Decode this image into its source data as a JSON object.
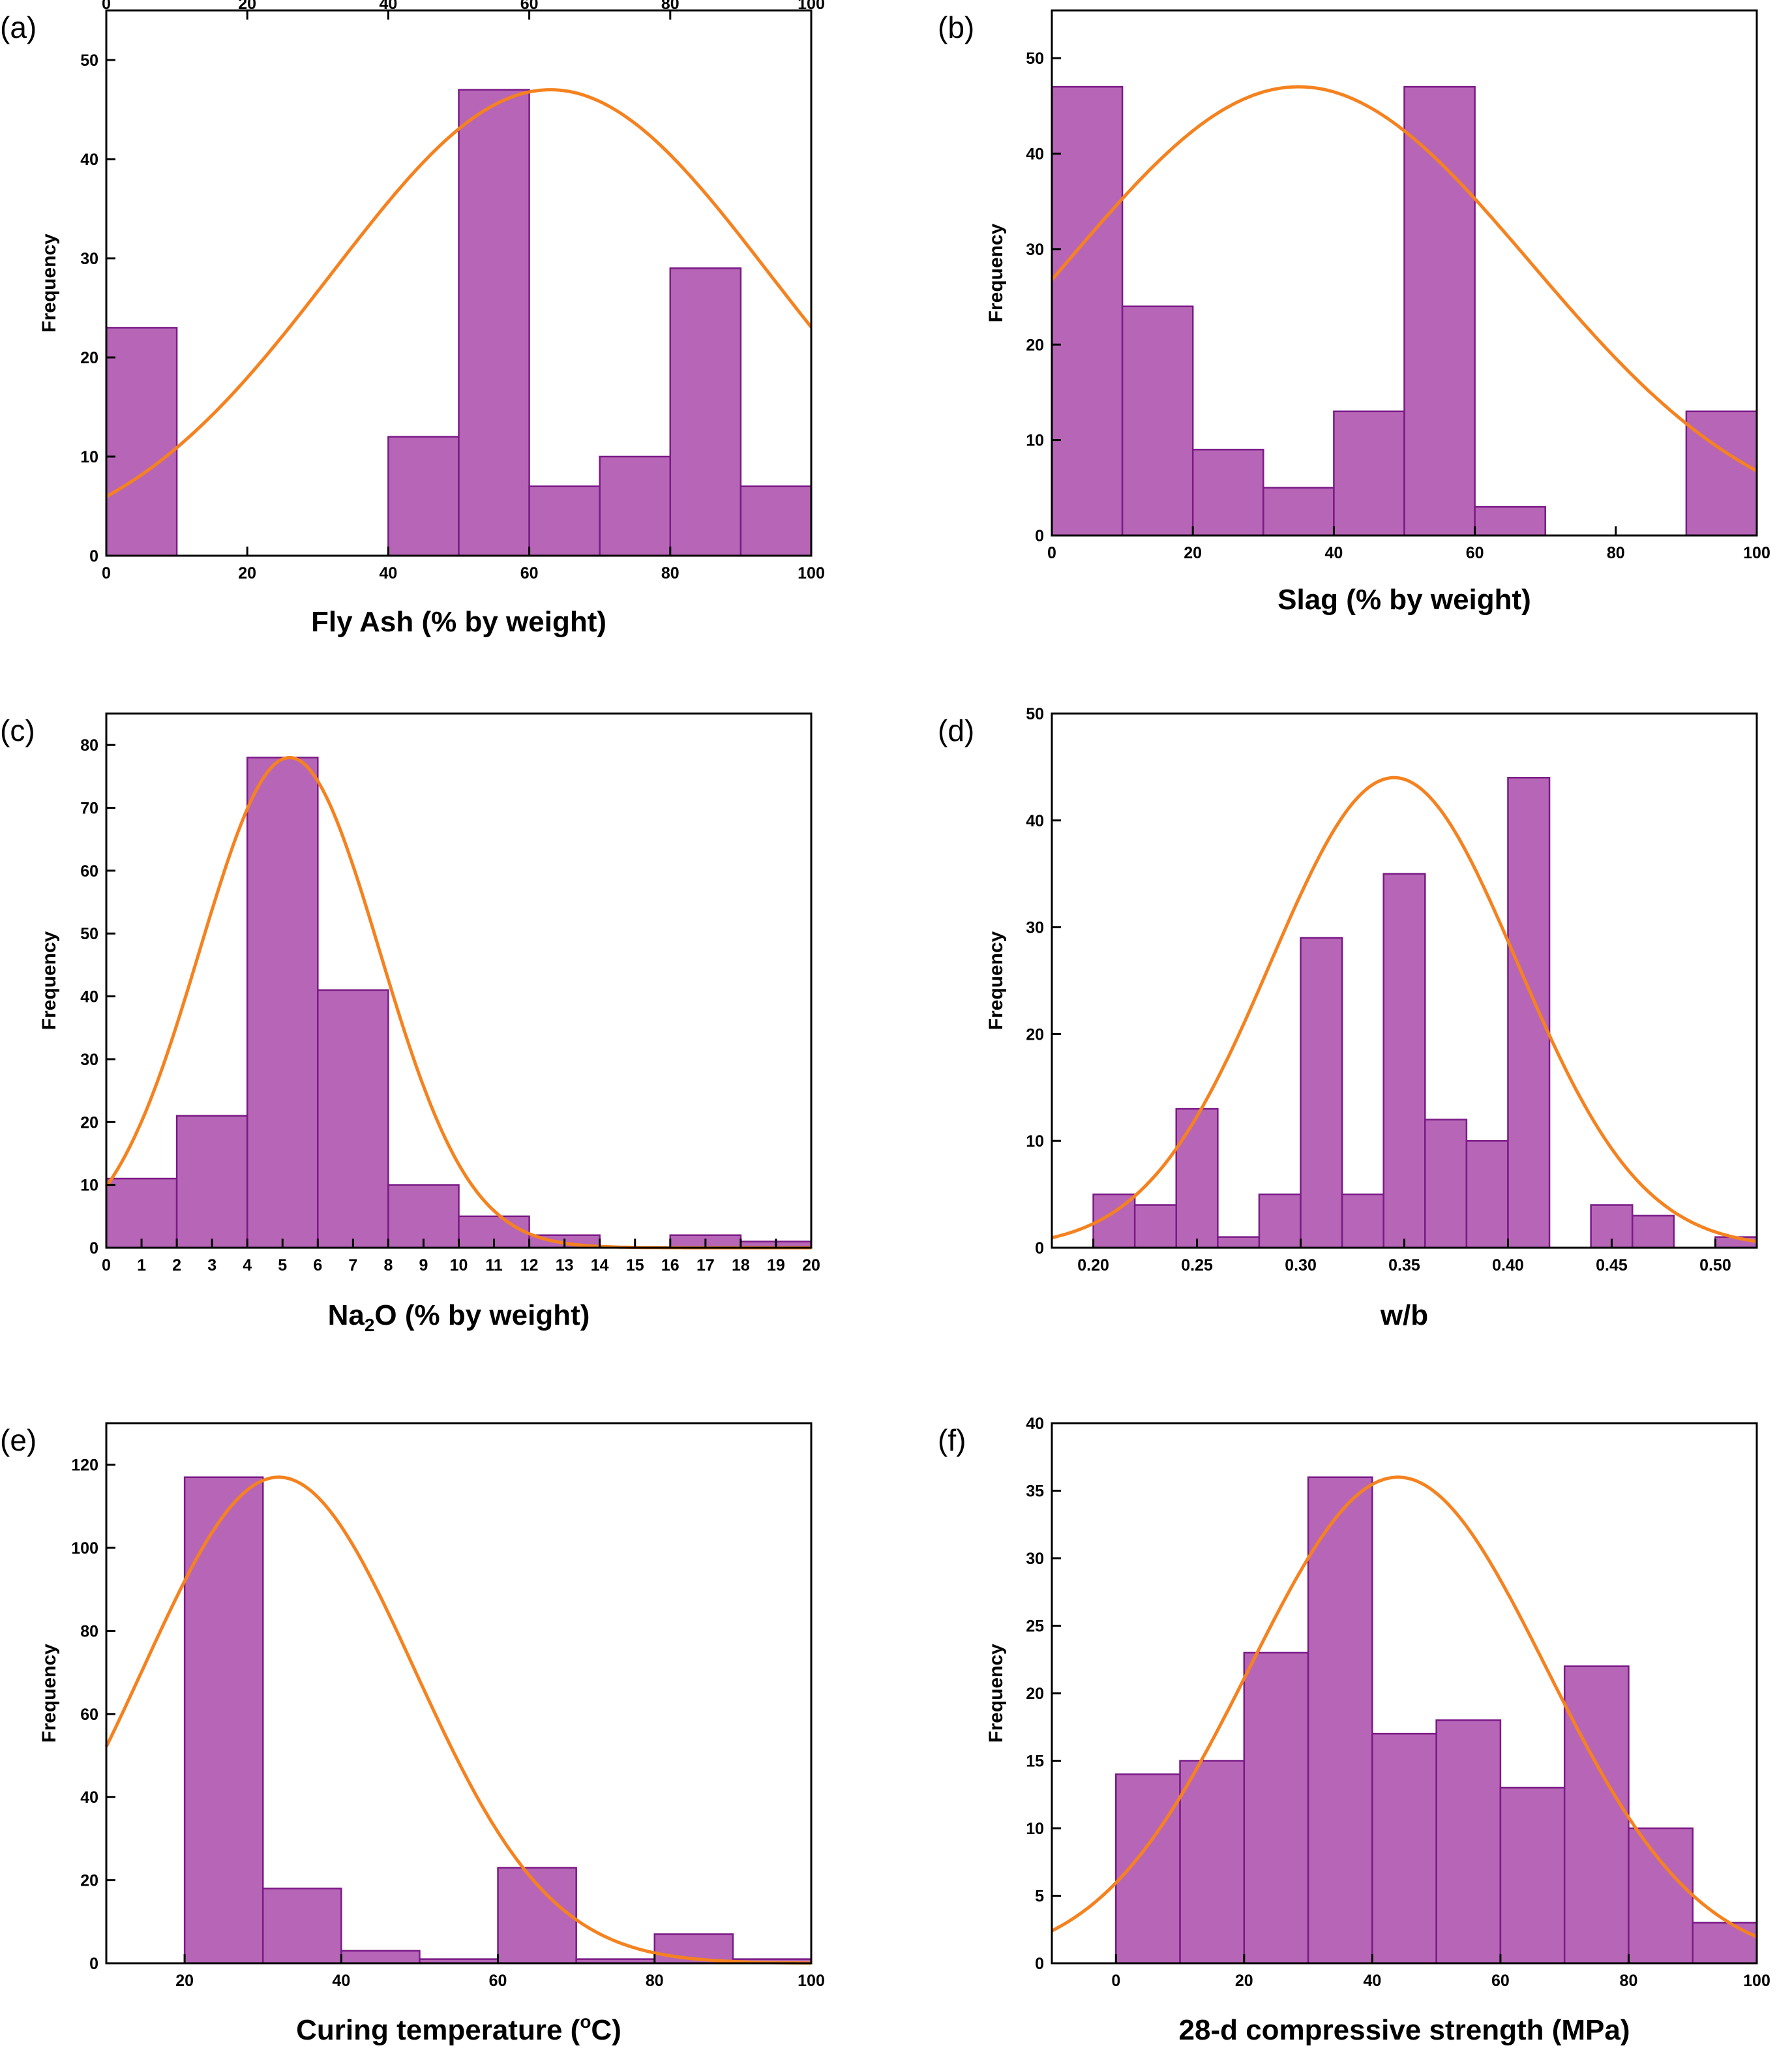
{
  "chart_data": [
    {
      "type": "bar",
      "panel_label": "(a)",
      "title": "",
      "xlabel": "Fly Ash (% by weight)",
      "ylabel": "Frequency",
      "xlim": [
        0,
        100
      ],
      "ylim": [
        0,
        55
      ],
      "xticks": [
        0,
        20,
        40,
        60,
        80,
        100
      ],
      "yticks": [
        0,
        10,
        20,
        30,
        40,
        50
      ],
      "top_axis_ticks": true,
      "bins": [
        [
          0,
          10,
          23
        ],
        [
          40,
          50,
          12
        ],
        [
          50,
          60,
          47
        ],
        [
          60,
          70,
          7
        ],
        [
          70,
          80,
          10
        ],
        [
          80,
          90,
          29
        ],
        [
          90,
          100,
          7
        ]
      ],
      "normal_fit": {
        "mean": 63,
        "sd": 31,
        "peak": 47
      }
    },
    {
      "type": "bar",
      "panel_label": "(b)",
      "title": "",
      "xlabel": "Slag (% by weight)",
      "ylabel": "Frequency",
      "xlim": [
        0,
        100
      ],
      "ylim": [
        0,
        55
      ],
      "xticks": [
        0,
        20,
        40,
        60,
        80,
        100
      ],
      "yticks": [
        0,
        10,
        20,
        30,
        40,
        50
      ],
      "top_axis_ticks": false,
      "bins": [
        [
          0,
          10,
          47
        ],
        [
          10,
          20,
          24
        ],
        [
          20,
          30,
          9
        ],
        [
          30,
          40,
          5
        ],
        [
          40,
          50,
          13
        ],
        [
          50,
          60,
          47
        ],
        [
          60,
          70,
          3
        ],
        [
          90,
          100,
          13
        ]
      ],
      "normal_fit": {
        "mean": 35,
        "sd": 33,
        "peak": 47
      }
    },
    {
      "type": "bar",
      "panel_label": "(c)",
      "title": "",
      "xlabel": "Na2O (% by weight)",
      "xlabel_parts": [
        "Na",
        "2",
        "O (% by weight)"
      ],
      "ylabel": "Frequency",
      "xlim": [
        0,
        20
      ],
      "ylim": [
        0,
        85
      ],
      "xticks": [
        0,
        1,
        2,
        3,
        4,
        5,
        6,
        7,
        8,
        9,
        10,
        11,
        12,
        13,
        14,
        15,
        16,
        17,
        18,
        19,
        20
      ],
      "yticks": [
        0,
        10,
        20,
        30,
        40,
        50,
        60,
        70,
        80
      ],
      "top_axis_ticks": false,
      "bins": [
        [
          0,
          2,
          11
        ],
        [
          2,
          4,
          21
        ],
        [
          4,
          6,
          78
        ],
        [
          6,
          8,
          41
        ],
        [
          8,
          10,
          10
        ],
        [
          10,
          12,
          5
        ],
        [
          12,
          14,
          2
        ],
        [
          16,
          18,
          2
        ],
        [
          18,
          20,
          1
        ]
      ],
      "normal_fit": {
        "mean": 5.2,
        "sd": 2.55,
        "peak": 78
      }
    },
    {
      "type": "bar",
      "panel_label": "(d)",
      "title": "",
      "xlabel": "w/b",
      "ylabel": "Frequency",
      "xlim": [
        0.18,
        0.52
      ],
      "ylim": [
        0,
        50
      ],
      "xticks": [
        0.2,
        0.25,
        0.3,
        0.35,
        0.4,
        0.45,
        0.5
      ],
      "xtick_labels": [
        "0.20",
        "0.25",
        "0.30",
        "0.35",
        "0.40",
        "0.45",
        "0.50"
      ],
      "yticks": [
        0,
        10,
        20,
        30,
        40,
        50
      ],
      "top_axis_ticks": false,
      "bins": [
        [
          0.2,
          0.22,
          5
        ],
        [
          0.22,
          0.24,
          4
        ],
        [
          0.24,
          0.26,
          13
        ],
        [
          0.26,
          0.28,
          1
        ],
        [
          0.28,
          0.3,
          5
        ],
        [
          0.3,
          0.32,
          29
        ],
        [
          0.32,
          0.34,
          5
        ],
        [
          0.34,
          0.36,
          35
        ],
        [
          0.36,
          0.38,
          12
        ],
        [
          0.38,
          0.4,
          10
        ],
        [
          0.4,
          0.42,
          44
        ],
        [
          0.44,
          0.46,
          4
        ],
        [
          0.46,
          0.48,
          3
        ],
        [
          0.5,
          0.52,
          1
        ]
      ],
      "normal_fit": {
        "mean": 0.345,
        "sd": 0.0595,
        "peak": 44
      }
    },
    {
      "type": "bar",
      "panel_label": "(e)",
      "title": "",
      "xlabel": "Curing temperature (°C)",
      "xlabel_parts": [
        "Curing temperature (",
        "o",
        "C)"
      ],
      "ylabel": "Frequency",
      "xlim": [
        10,
        100
      ],
      "ylim": [
        0,
        130
      ],
      "xticks": [
        20,
        40,
        60,
        80,
        100
      ],
      "yticks": [
        0,
        20,
        40,
        60,
        80,
        100,
        120
      ],
      "top_axis_ticks": false,
      "bins": [
        [
          20,
          30,
          117
        ],
        [
          30,
          40,
          18
        ],
        [
          40,
          50,
          3
        ],
        [
          50,
          60,
          1
        ],
        [
          60,
          70,
          23
        ],
        [
          70,
          80,
          1
        ],
        [
          80,
          90,
          7
        ],
        [
          90,
          100,
          1
        ]
      ],
      "normal_fit": {
        "mean": 32,
        "sd": 17.3,
        "peak": 117
      }
    },
    {
      "type": "bar",
      "panel_label": "(f)",
      "title": "",
      "xlabel": "28-d compressive strength (MPa)",
      "ylabel": "Frequency",
      "xlim": [
        -10,
        100
      ],
      "ylim": [
        0,
        40
      ],
      "xticks": [
        0,
        20,
        40,
        60,
        80,
        100
      ],
      "yticks": [
        0,
        5,
        10,
        15,
        20,
        25,
        30,
        35,
        40
      ],
      "top_axis_ticks": false,
      "bins": [
        [
          0,
          10,
          14
        ],
        [
          10,
          20,
          15
        ],
        [
          20,
          30,
          23
        ],
        [
          30,
          40,
          36
        ],
        [
          40,
          50,
          17
        ],
        [
          50,
          60,
          18
        ],
        [
          60,
          70,
          13
        ],
        [
          70,
          80,
          22
        ],
        [
          80,
          90,
          10
        ],
        [
          90,
          100,
          3
        ]
      ],
      "normal_fit": {
        "mean": 44,
        "sd": 23.2,
        "peak": 36
      }
    }
  ]
}
